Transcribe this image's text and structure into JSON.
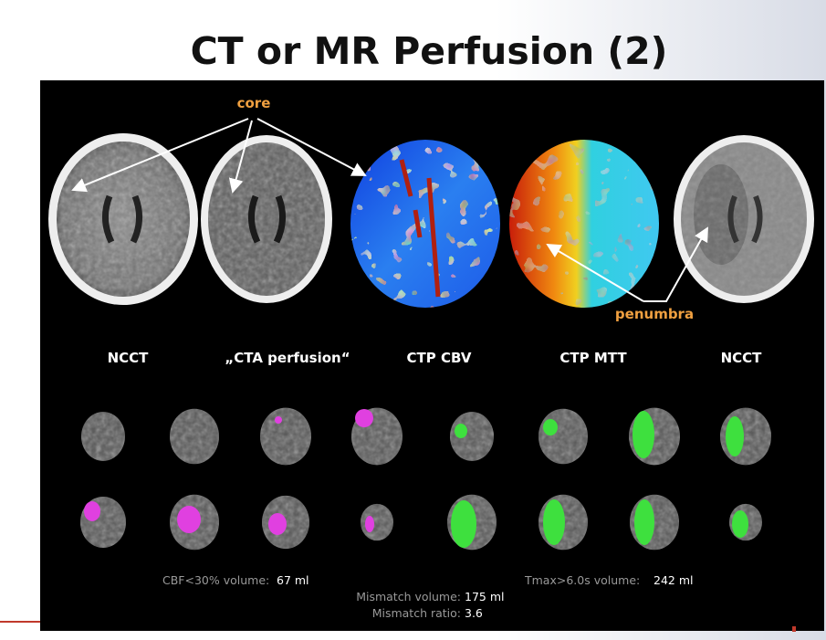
{
  "title": "CT or MR Perfusion (2)",
  "annotations": [
    "core",
    "penumbra"
  ],
  "captions": [
    "NCCT",
    "„CTA perfusion“",
    "CTP CBV",
    "CTP MTT",
    "NCCT"
  ],
  "stats": {
    "cbf": {
      "label": "CBF<30% volume:",
      "value": "67 ml"
    },
    "tmax": {
      "label": "Tmax>6.0s volume:",
      "value": "242 ml"
    },
    "mismatch_volume": {
      "label": "Mismatch volume:",
      "value": "175 ml"
    },
    "mismatch_ratio": {
      "label": "Mismatch ratio:",
      "value": "3.6"
    }
  }
}
